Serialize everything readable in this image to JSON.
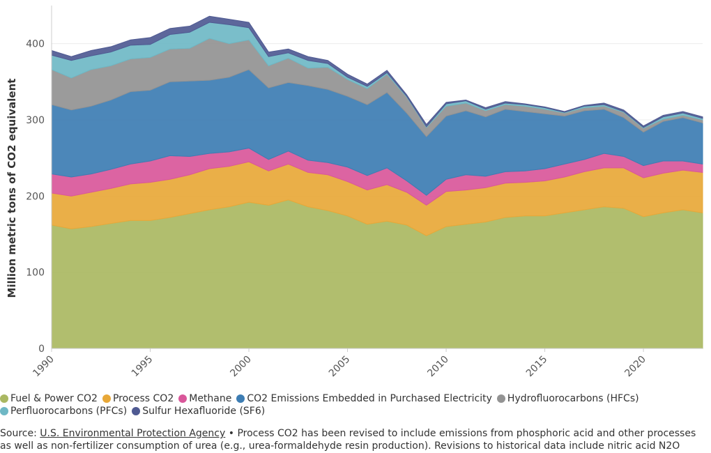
{
  "chart_data": {
    "type": "stacked-area",
    "y_label": "Million metric tons of CO2 equivalent",
    "x": [
      1990,
      1991,
      1992,
      1993,
      1994,
      1995,
      1996,
      1997,
      1998,
      1999,
      2000,
      2001,
      2002,
      2003,
      2004,
      2005,
      2006,
      2007,
      2008,
      2009,
      2010,
      2011,
      2012,
      2013,
      2014,
      2015,
      2016,
      2017,
      2018,
      2019,
      2020,
      2021,
      2022,
      2023
    ],
    "xlim": [
      1990,
      2023
    ],
    "xticks": [
      1990,
      1995,
      2000,
      2005,
      2010,
      2015,
      2020
    ],
    "ylim": [
      0,
      450
    ],
    "yticks": [
      0,
      100,
      200,
      300,
      400
    ],
    "grid": true,
    "series": [
      {
        "name": "Fuel & Power CO2",
        "color": "#aab862",
        "values": [
          162,
          157,
          160,
          164,
          168,
          168,
          172,
          177,
          182,
          186,
          192,
          188,
          195,
          186,
          181,
          174,
          163,
          167,
          162,
          148,
          160,
          163,
          166,
          172,
          174,
          174,
          178,
          182,
          186,
          184,
          173,
          178,
          182,
          178
        ]
      },
      {
        "name": "Process CO2",
        "color": "#e8a838",
        "values": [
          42,
          43,
          45,
          46,
          48,
          50,
          50,
          51,
          54,
          53,
          53,
          45,
          47,
          45,
          47,
          45,
          45,
          48,
          43,
          40,
          46,
          45,
          45,
          45,
          44,
          46,
          47,
          50,
          51,
          53,
          51,
          52,
          52,
          53
        ]
      },
      {
        "name": "Methane",
        "color": "#d9579a",
        "values": [
          25,
          25,
          24,
          25,
          26,
          28,
          31,
          24,
          20,
          19,
          18,
          15,
          17,
          16,
          16,
          19,
          19,
          22,
          15,
          13,
          16,
          20,
          15,
          15,
          15,
          16,
          17,
          16,
          19,
          15,
          16,
          16,
          12,
          11
        ]
      },
      {
        "name": "CO2 Emissions Embedded in Purchased Electricity",
        "color": "#3d7db3",
        "values": [
          91,
          88,
          89,
          91,
          95,
          93,
          97,
          99,
          96,
          98,
          103,
          94,
          90,
          98,
          96,
          93,
          93,
          99,
          89,
          77,
          83,
          84,
          78,
          82,
          78,
          72,
          63,
          64,
          58,
          51,
          44,
          52,
          57,
          54
        ]
      },
      {
        "name": "Hydrofluorocarbons (HFCs)",
        "color": "#939393",
        "values": [
          46,
          42,
          48,
          45,
          43,
          43,
          43,
          43,
          55,
          44,
          39,
          29,
          32,
          23,
          29,
          22,
          21,
          24,
          21,
          12,
          13,
          10,
          8,
          6,
          7,
          6,
          4,
          4,
          4,
          7,
          5,
          3,
          3,
          4
        ]
      },
      {
        "name": "Perfluorocarbons (PFCs)",
        "color": "#6fb8c5",
        "values": [
          19,
          23,
          18,
          18,
          18,
          17,
          19,
          21,
          21,
          25,
          16,
          12,
          7,
          10,
          5,
          3,
          3,
          2,
          1,
          1,
          3,
          3,
          2,
          2,
          2,
          2,
          1,
          2,
          2,
          1,
          1,
          3,
          3,
          2
        ]
      },
      {
        "name": "Sulfur Hexafluoride (SF6)",
        "color": "#4f5a92",
        "values": [
          6,
          5,
          7,
          7,
          7,
          9,
          8,
          8,
          8,
          7,
          7,
          6,
          5,
          5,
          4,
          4,
          3,
          3,
          2,
          3,
          2,
          1,
          2,
          2,
          1,
          1,
          1,
          1,
          2,
          2,
          2,
          2,
          2,
          2
        ]
      }
    ],
    "source_label": "Source:",
    "source_link": "U.S. Environmental Protection Agency",
    "note": "• Process CO2 has been revised to include emissions from phosphoric acid and other processes as well as non-fertilizer consumption of urea (e.g., urea-formaldehyde resin production). Revisions to historical data include nitric acid N2O"
  }
}
